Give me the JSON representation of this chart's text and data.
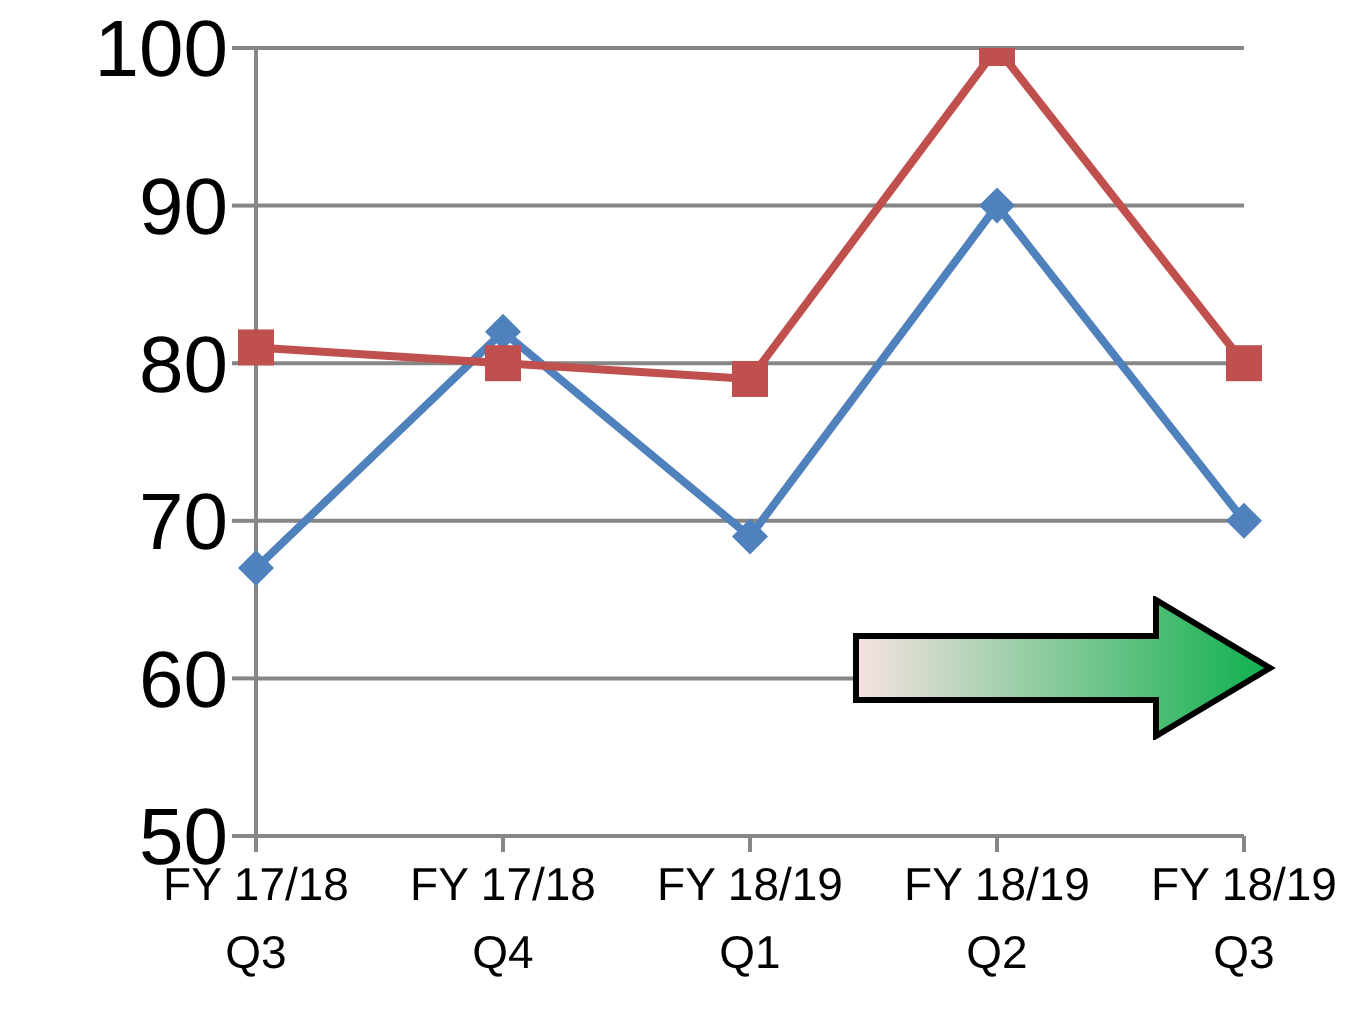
{
  "chart_data": {
    "type": "line",
    "categories": [
      "FY 17/18 Q3",
      "FY 17/18 Q4",
      "FY 18/19 Q1",
      "FY 18/19 Q2",
      "FY 18/19 Q3"
    ],
    "series": [
      {
        "color": "#4f81bd",
        "marker": "diamond",
        "values": [
          67,
          82,
          69,
          90,
          70
        ]
      },
      {
        "color": "#c0504d",
        "marker": "square",
        "values": [
          81,
          80,
          79,
          100,
          80
        ]
      }
    ],
    "ylim": [
      50,
      100
    ],
    "yticks": [
      50,
      60,
      70,
      80,
      90,
      100
    ],
    "grid": "y",
    "legend": false,
    "line_style": "solid"
  }
}
